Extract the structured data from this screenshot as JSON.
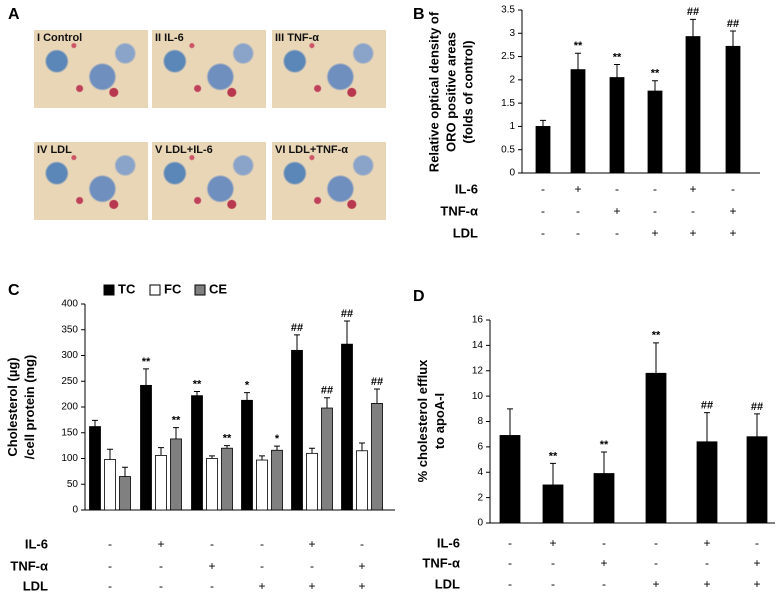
{
  "panel_labels": [
    "A",
    "B",
    "C",
    "D"
  ],
  "micrographs": [
    "I Control",
    "II IL-6",
    "III TNF-α",
    "IV LDL",
    "V LDL+IL-6",
    "VI LDL+TNF-α"
  ],
  "chart_data": [
    {
      "type": "bar",
      "ylabel": [
        "Relative optical density of",
        "ORO positive areas",
        "(folds of control)"
      ],
      "ylim": [
        0,
        3.5
      ],
      "yticks": [
        0,
        0.5,
        1,
        1.5,
        2,
        2.5,
        3,
        3.5
      ],
      "color": "#000000",
      "values": [
        1.0,
        2.22,
        2.05,
        1.76,
        2.93,
        2.72
      ],
      "errors": [
        0.13,
        0.35,
        0.28,
        0.22,
        0.37,
        0.33
      ],
      "annotations": [
        null,
        "**",
        "**",
        "**",
        "##",
        "##"
      ],
      "conditions": [
        {
          "name": "IL-6",
          "values": [
            "-",
            "+",
            "-",
            "-",
            "+",
            "-"
          ]
        },
        {
          "name": "TNF-α",
          "values": [
            "-",
            "-",
            "+",
            "-",
            "-",
            "+"
          ]
        },
        {
          "name": "LDL",
          "values": [
            "-",
            "-",
            "-",
            "+",
            "+",
            "+"
          ]
        }
      ]
    },
    {
      "type": "grouped_bar",
      "ylabel": [
        "Cholesterol (µg)",
        "/cell protein (mg)"
      ],
      "ylim": [
        0,
        400
      ],
      "yticks": [
        0,
        50,
        100,
        150,
        200,
        250,
        300,
        350,
        400
      ],
      "series": [
        {
          "name": "TC",
          "color": "#000000",
          "values": [
            162,
            242,
            222,
            213,
            310,
            322
          ],
          "errors": [
            12,
            32,
            8,
            15,
            30,
            45
          ],
          "annotations": [
            null,
            "**",
            "**",
            "*",
            "##",
            "##"
          ]
        },
        {
          "name": "FC",
          "color": "#ffffff",
          "values": [
            98,
            106,
            100,
            97,
            110,
            115
          ],
          "errors": [
            20,
            15,
            5,
            8,
            10,
            15
          ]
        },
        {
          "name": "CE",
          "color": "#808080",
          "values": [
            65,
            138,
            120,
            116,
            198,
            207
          ],
          "errors": [
            18,
            22,
            5,
            8,
            20,
            28
          ],
          "annotations": [
            null,
            "**",
            "**",
            "*",
            "##",
            "##"
          ]
        }
      ],
      "conditions": [
        {
          "name": "IL-6",
          "values": [
            "-",
            "+",
            "-",
            "-",
            "+",
            "-"
          ]
        },
        {
          "name": "TNF-α",
          "values": [
            "-",
            "-",
            "+",
            "-",
            "-",
            "+"
          ]
        },
        {
          "name": "LDL",
          "values": [
            "-",
            "-",
            "-",
            "+",
            "+",
            "+"
          ]
        }
      ]
    },
    {
      "type": "bar",
      "ylabel": [
        "% cholesterol efflux",
        "to apoA-I"
      ],
      "ylim": [
        0,
        16
      ],
      "yticks": [
        0,
        2,
        4,
        6,
        8,
        10,
        12,
        14,
        16
      ],
      "color": "#000000",
      "values": [
        6.9,
        3.0,
        3.9,
        11.8,
        6.4,
        6.8
      ],
      "errors": [
        2.1,
        1.7,
        1.7,
        2.4,
        2.3,
        1.8
      ],
      "annotations": [
        null,
        "**",
        "**",
        "**",
        "##",
        "##"
      ],
      "conditions": [
        {
          "name": "IL-6",
          "values": [
            "-",
            "+",
            "-",
            "-",
            "+",
            "-"
          ]
        },
        {
          "name": "TNF-α",
          "values": [
            "-",
            "-",
            "+",
            "-",
            "-",
            "+"
          ]
        },
        {
          "name": "LDL",
          "values": [
            "-",
            "-",
            "-",
            "+",
            "+",
            "+"
          ]
        }
      ]
    }
  ]
}
